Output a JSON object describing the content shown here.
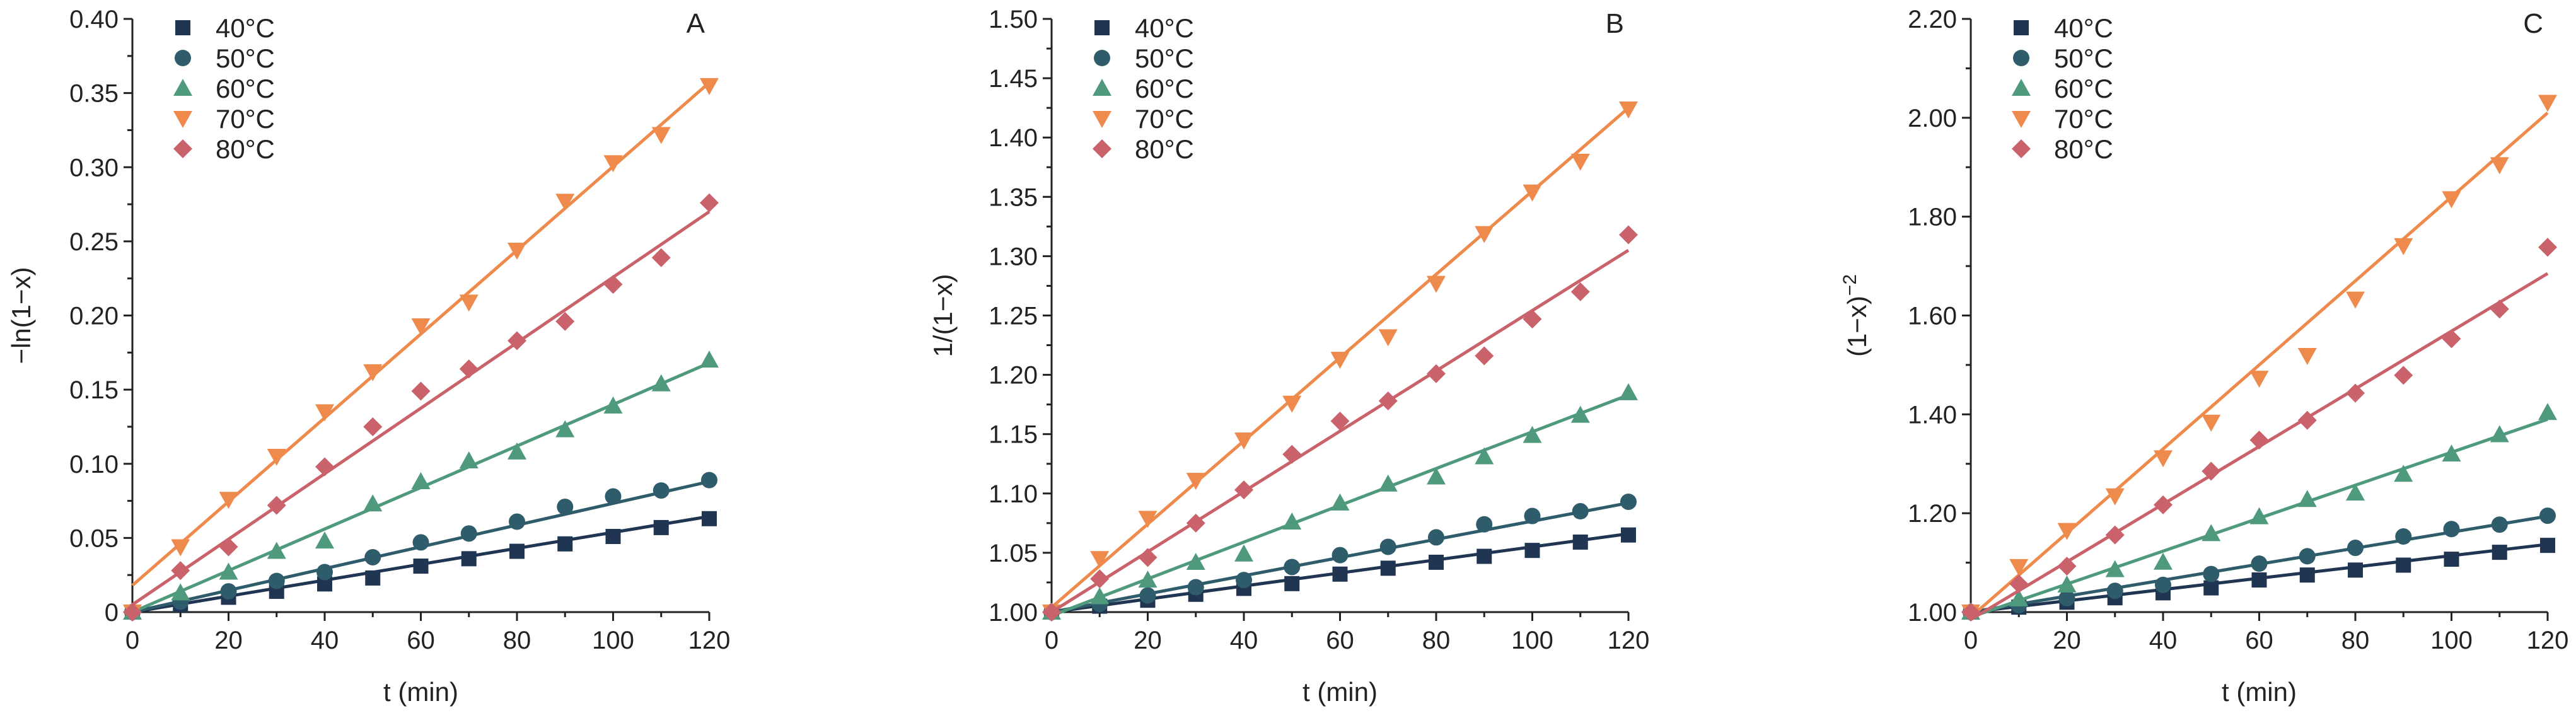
{
  "chart_data": [
    {
      "type": "scatter",
      "panel": "A",
      "xlabel": "t (min)",
      "ylabel": "−ln(1−x)",
      "ylabel_sup": "",
      "xlim": [
        0,
        120
      ],
      "ylim": [
        0,
        0.4
      ],
      "xticks": [
        0,
        20,
        40,
        60,
        80,
        100,
        120
      ],
      "yticks": [
        0,
        0.05,
        0.1,
        0.15,
        0.2,
        0.25,
        0.3,
        0.35,
        0.4
      ],
      "ytick_labels": [
        "0",
        "0.05",
        "0.10",
        "0.15",
        "0.20",
        "0.25",
        "0.30",
        "0.35",
        "0.40"
      ],
      "x": [
        0,
        10,
        20,
        30,
        40,
        50,
        60,
        70,
        80,
        90,
        100,
        110,
        120
      ],
      "series": [
        {
          "name": "40°C",
          "marker": "square",
          "color": "#1f3552",
          "values": [
            0,
            0.005,
            0.01,
            0.014,
            0.019,
            0.023,
            0.031,
            0.036,
            0.041,
            0.046,
            0.051,
            0.057,
            0.063
          ],
          "fit": [
            0,
            0.0645
          ]
        },
        {
          "name": "50°C",
          "marker": "circle",
          "color": "#2f5c6b",
          "values": [
            0,
            0.007,
            0.014,
            0.021,
            0.027,
            0.037,
            0.047,
            0.053,
            0.061,
            0.071,
            0.078,
            0.082,
            0.089
          ],
          "fit": [
            0,
            0.088
          ]
        },
        {
          "name": "60°C",
          "marker": "triangle-up",
          "color": "#4f9a7d",
          "values": [
            0,
            0.013,
            0.027,
            0.041,
            0.048,
            0.073,
            0.088,
            0.102,
            0.108,
            0.123,
            0.139,
            0.154,
            0.17
          ],
          "fit": [
            0,
            0.168
          ]
        },
        {
          "name": "70°C",
          "marker": "triangle-down",
          "color": "#ee8a4c",
          "values": [
            0,
            0.044,
            0.076,
            0.105,
            0.135,
            0.162,
            0.193,
            0.209,
            0.244,
            0.277,
            0.303,
            0.322,
            0.355
          ],
          "fit": [
            0.018,
            0.357
          ]
        },
        {
          "name": "80°C",
          "marker": "diamond",
          "color": "#c9626a",
          "values": [
            0,
            0.028,
            0.044,
            0.072,
            0.098,
            0.125,
            0.149,
            0.164,
            0.183,
            0.196,
            0.221,
            0.239,
            0.276
          ],
          "fit": [
            0.005,
            0.27
          ]
        }
      ]
    },
    {
      "type": "scatter",
      "panel": "B",
      "xlabel": "t (min)",
      "ylabel": "1/(1−x)",
      "ylabel_sup": "",
      "xlim": [
        0,
        120
      ],
      "ylim": [
        1.0,
        1.5
      ],
      "xticks": [
        0,
        20,
        40,
        60,
        80,
        100,
        120
      ],
      "yticks": [
        1.0,
        1.05,
        1.1,
        1.15,
        1.2,
        1.25,
        1.3,
        1.35,
        1.4,
        1.45,
        1.5
      ],
      "ytick_labels": [
        "1.00",
        "1.05",
        "1.10",
        "1.15",
        "1.20",
        "1.25",
        "1.30",
        "1.35",
        "1.40",
        "1.45",
        "1.50"
      ],
      "x": [
        0,
        10,
        20,
        30,
        40,
        50,
        60,
        70,
        80,
        90,
        100,
        110,
        120
      ],
      "series": [
        {
          "name": "40°C",
          "marker": "square",
          "color": "#1f3552",
          "values": [
            1.0,
            1.005,
            1.01,
            1.015,
            1.02,
            1.024,
            1.032,
            1.037,
            1.042,
            1.047,
            1.052,
            1.059,
            1.065
          ],
          "fit": [
            1.0,
            1.066
          ]
        },
        {
          "name": "50°C",
          "marker": "circle",
          "color": "#2f5c6b",
          "values": [
            1.0,
            1.007,
            1.014,
            1.021,
            1.027,
            1.038,
            1.048,
            1.055,
            1.063,
            1.074,
            1.081,
            1.085,
            1.093
          ],
          "fit": [
            1.0,
            1.092
          ]
        },
        {
          "name": "60°C",
          "marker": "triangle-up",
          "color": "#4f9a7d",
          "values": [
            1.0,
            1.013,
            1.027,
            1.042,
            1.049,
            1.076,
            1.092,
            1.108,
            1.114,
            1.131,
            1.149,
            1.166,
            1.185
          ],
          "fit": [
            0.997,
            1.183
          ]
        },
        {
          "name": "70°C",
          "marker": "triangle-down",
          "color": "#ee8a4c",
          "values": [
            1.0,
            1.045,
            1.079,
            1.111,
            1.145,
            1.176,
            1.213,
            1.232,
            1.277,
            1.319,
            1.354,
            1.38,
            1.424
          ],
          "fit": [
            1.004,
            1.425
          ]
        },
        {
          "name": "80°C",
          "marker": "diamond",
          "color": "#c9626a",
          "values": [
            1.0,
            1.028,
            1.046,
            1.075,
            1.103,
            1.133,
            1.161,
            1.178,
            1.201,
            1.216,
            1.247,
            1.27,
            1.318
          ],
          "fit": [
            1.0,
            1.305
          ]
        }
      ]
    },
    {
      "type": "scatter",
      "panel": "C",
      "xlabel": "t (min)",
      "ylabel": "(1−x)",
      "ylabel_sup": "−2",
      "xlim": [
        0,
        120
      ],
      "ylim": [
        1.0,
        2.2
      ],
      "xticks": [
        0,
        20,
        40,
        60,
        80,
        100,
        120
      ],
      "yticks": [
        1.0,
        1.2,
        1.4,
        1.6,
        1.8,
        2.0,
        2.2
      ],
      "ytick_labels": [
        "1.00",
        "1.20",
        "1.40",
        "1.60",
        "1.80",
        "2.00",
        "2.20"
      ],
      "x": [
        0,
        10,
        20,
        30,
        40,
        50,
        60,
        70,
        80,
        90,
        100,
        110,
        120
      ],
      "series": [
        {
          "name": "40°C",
          "marker": "square",
          "color": "#1f3552",
          "values": [
            1.0,
            1.01,
            1.02,
            1.029,
            1.039,
            1.049,
            1.065,
            1.075,
            1.085,
            1.095,
            1.107,
            1.121,
            1.135
          ],
          "fit": [
            1.0,
            1.137
          ]
        },
        {
          "name": "50°C",
          "marker": "circle",
          "color": "#2f5c6b",
          "values": [
            1.0,
            1.014,
            1.028,
            1.043,
            1.055,
            1.077,
            1.098,
            1.113,
            1.13,
            1.153,
            1.168,
            1.177,
            1.195
          ],
          "fit": [
            1.0,
            1.194
          ]
        },
        {
          "name": "60°C",
          "marker": "triangle-up",
          "color": "#4f9a7d",
          "values": [
            1.0,
            1.027,
            1.055,
            1.086,
            1.101,
            1.159,
            1.193,
            1.228,
            1.241,
            1.279,
            1.32,
            1.359,
            1.404
          ],
          "fit": [
            0.99,
            1.39
          ]
        },
        {
          "name": "70°C",
          "marker": "triangle-down",
          "color": "#ee8a4c",
          "values": [
            1.0,
            1.092,
            1.165,
            1.235,
            1.312,
            1.384,
            1.473,
            1.519,
            1.633,
            1.741,
            1.836,
            1.905,
            2.031
          ],
          "fit": [
            0.99,
            2.01
          ]
        },
        {
          "name": "80°C",
          "marker": "diamond",
          "color": "#c9626a",
          "values": [
            1.0,
            1.057,
            1.093,
            1.156,
            1.217,
            1.285,
            1.348,
            1.388,
            1.443,
            1.479,
            1.553,
            1.613,
            1.738
          ],
          "fit": [
            0.985,
            1.685
          ]
        }
      ]
    }
  ]
}
